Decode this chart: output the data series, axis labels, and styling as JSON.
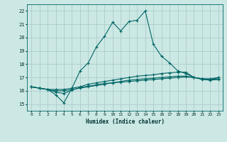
{
  "xlabel": "Humidex (Indice chaleur)",
  "ylabel": "",
  "bg_color": "#cce8e4",
  "grid_color": "#aacccc",
  "line_color": "#006666",
  "xlim": [
    -0.5,
    23.5
  ],
  "ylim": [
    14.5,
    22.5
  ],
  "xticks": [
    0,
    1,
    2,
    3,
    4,
    5,
    6,
    7,
    8,
    9,
    10,
    11,
    12,
    13,
    14,
    15,
    16,
    17,
    18,
    19,
    20,
    21,
    22,
    23
  ],
  "yticks": [
    15,
    16,
    17,
    18,
    19,
    20,
    21,
    22
  ],
  "line1_x": [
    0,
    1,
    2,
    3,
    4,
    5,
    6,
    7,
    8,
    9,
    10,
    11,
    12,
    13,
    14,
    15,
    16,
    17,
    18,
    19,
    20,
    21,
    22,
    23
  ],
  "line1_y": [
    16.3,
    16.2,
    16.1,
    15.7,
    15.1,
    16.2,
    17.5,
    18.1,
    19.3,
    20.1,
    21.15,
    20.5,
    21.2,
    21.3,
    22.0,
    19.5,
    18.6,
    18.1,
    17.5,
    17.3,
    17.0,
    16.9,
    16.8,
    17.0
  ],
  "line2_x": [
    0,
    1,
    2,
    3,
    4,
    5,
    6,
    7,
    8,
    9,
    10,
    11,
    12,
    13,
    14,
    15,
    16,
    17,
    18,
    19,
    20,
    21,
    22,
    23
  ],
  "line2_y": [
    16.3,
    16.2,
    16.1,
    16.1,
    16.1,
    16.2,
    16.3,
    16.5,
    16.6,
    16.7,
    16.8,
    16.9,
    17.0,
    17.1,
    17.15,
    17.2,
    17.3,
    17.35,
    17.4,
    17.4,
    17.0,
    16.9,
    16.9,
    17.0
  ],
  "line3_x": [
    0,
    1,
    2,
    3,
    4,
    5,
    6,
    7,
    8,
    9,
    10,
    11,
    12,
    13,
    14,
    15,
    16,
    17,
    18,
    19,
    20,
    21,
    22,
    23
  ],
  "line3_y": [
    16.3,
    16.2,
    16.1,
    16.0,
    16.0,
    16.1,
    16.2,
    16.3,
    16.4,
    16.5,
    16.6,
    16.7,
    16.8,
    16.85,
    16.9,
    16.95,
    17.0,
    17.05,
    17.1,
    17.1,
    17.0,
    16.9,
    16.85,
    16.9
  ],
  "line4_x": [
    0,
    1,
    2,
    3,
    4,
    5,
    6,
    7,
    8,
    9,
    10,
    11,
    12,
    13,
    14,
    15,
    16,
    17,
    18,
    19,
    20,
    21,
    22,
    23
  ],
  "line4_y": [
    16.3,
    16.2,
    16.1,
    15.9,
    15.8,
    16.05,
    16.25,
    16.35,
    16.45,
    16.55,
    16.6,
    16.65,
    16.7,
    16.75,
    16.8,
    16.85,
    16.9,
    16.95,
    17.0,
    17.05,
    17.0,
    16.85,
    16.8,
    16.85
  ]
}
